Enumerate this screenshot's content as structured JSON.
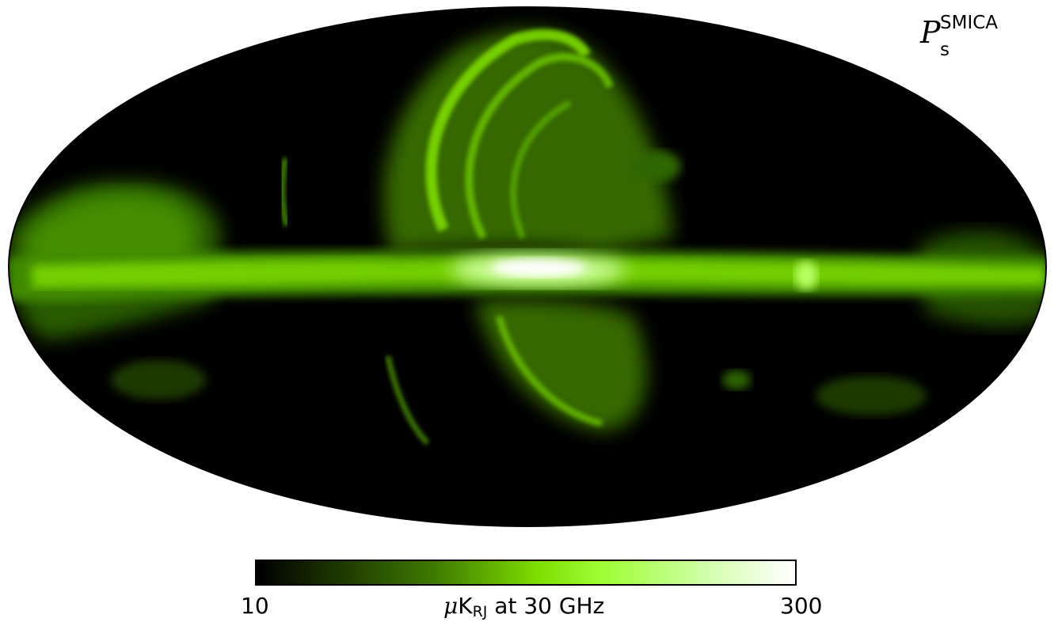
{
  "map": {
    "label": {
      "symbol": "P",
      "subscript": "s",
      "superscript": "SMICA"
    },
    "projection": "mollweide",
    "color_scale": [
      "#000000",
      "#1a3300",
      "#3f7a00",
      "#7ddc00",
      "#9cff33",
      "#d6ffb3",
      "#ffffff"
    ]
  },
  "colorbar": {
    "min_label": "10",
    "max_label": "300",
    "unit_prefix": "μ",
    "unit_main": "K",
    "unit_sub": "RJ",
    "unit_suffix": "at 30 GHz"
  }
}
